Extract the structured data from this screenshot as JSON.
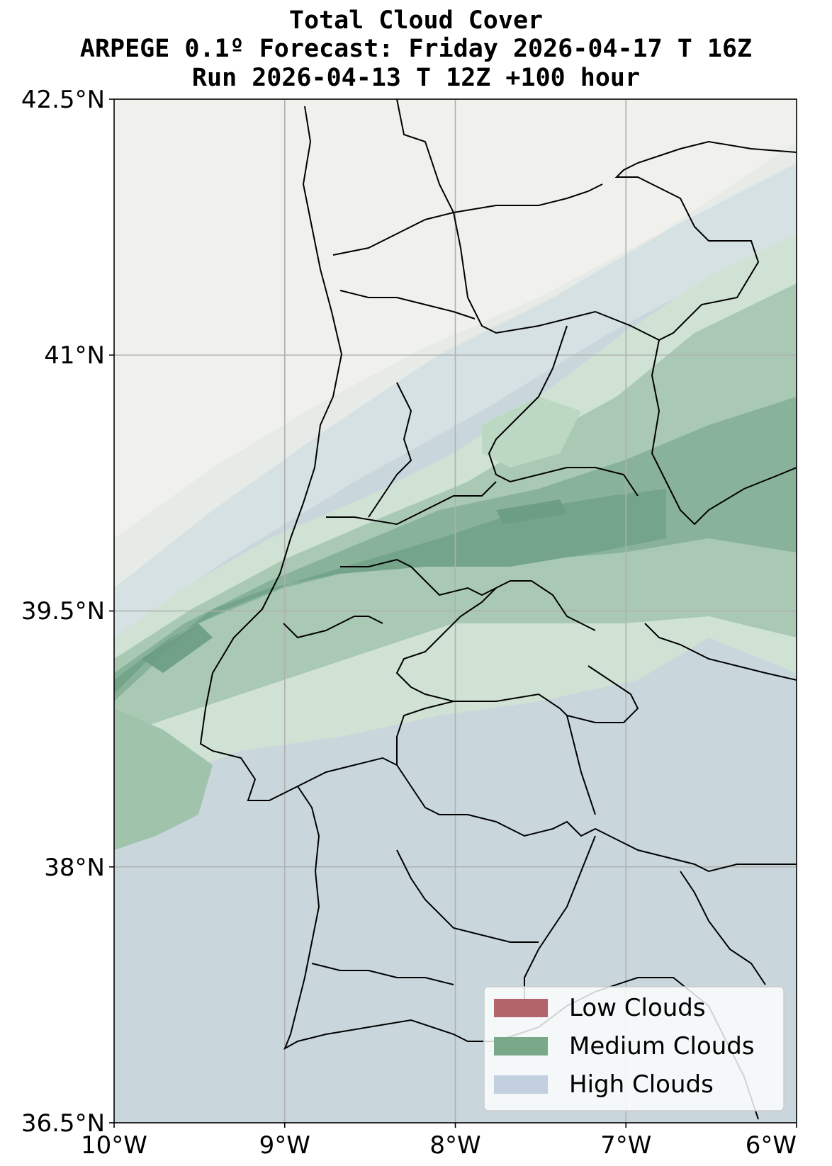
{
  "title": {
    "line1": "Total Cloud Cover",
    "line2": "ARPEGE 0.1º Forecast: Friday 2026-04-17 T 16Z",
    "line3": "Run 2026-04-13 T 12Z +100 hour"
  },
  "axes": {
    "x_ticks": [
      "10°W",
      "9°W",
      "8°W",
      "7°W",
      "6°W"
    ],
    "y_ticks": [
      "42.5°N",
      "41°N",
      "39.5°N",
      "38°N",
      "36.5°N"
    ],
    "x_range_deg": [
      -10,
      -6
    ],
    "y_range_deg": [
      36.5,
      42.5
    ],
    "grid": true
  },
  "legend": {
    "placement": "bottom-right",
    "items": [
      {
        "label": "Low Clouds",
        "color": "#b3646b"
      },
      {
        "label": "Medium Clouds",
        "color": "#7aa98a"
      },
      {
        "label": "High Clouds",
        "color": "#c2d0e0"
      }
    ]
  },
  "colors": {
    "land_clear": "#f0f1ec",
    "medium_light": "#cfe2d4",
    "medium_mid": "#a9c9b4",
    "medium_dark": "#7fae95",
    "medium_darker": "#6b9c84",
    "high_light": "#dce6e8",
    "high_mid": "#c8d6dc",
    "high_dark": "#bcc8d2"
  }
}
